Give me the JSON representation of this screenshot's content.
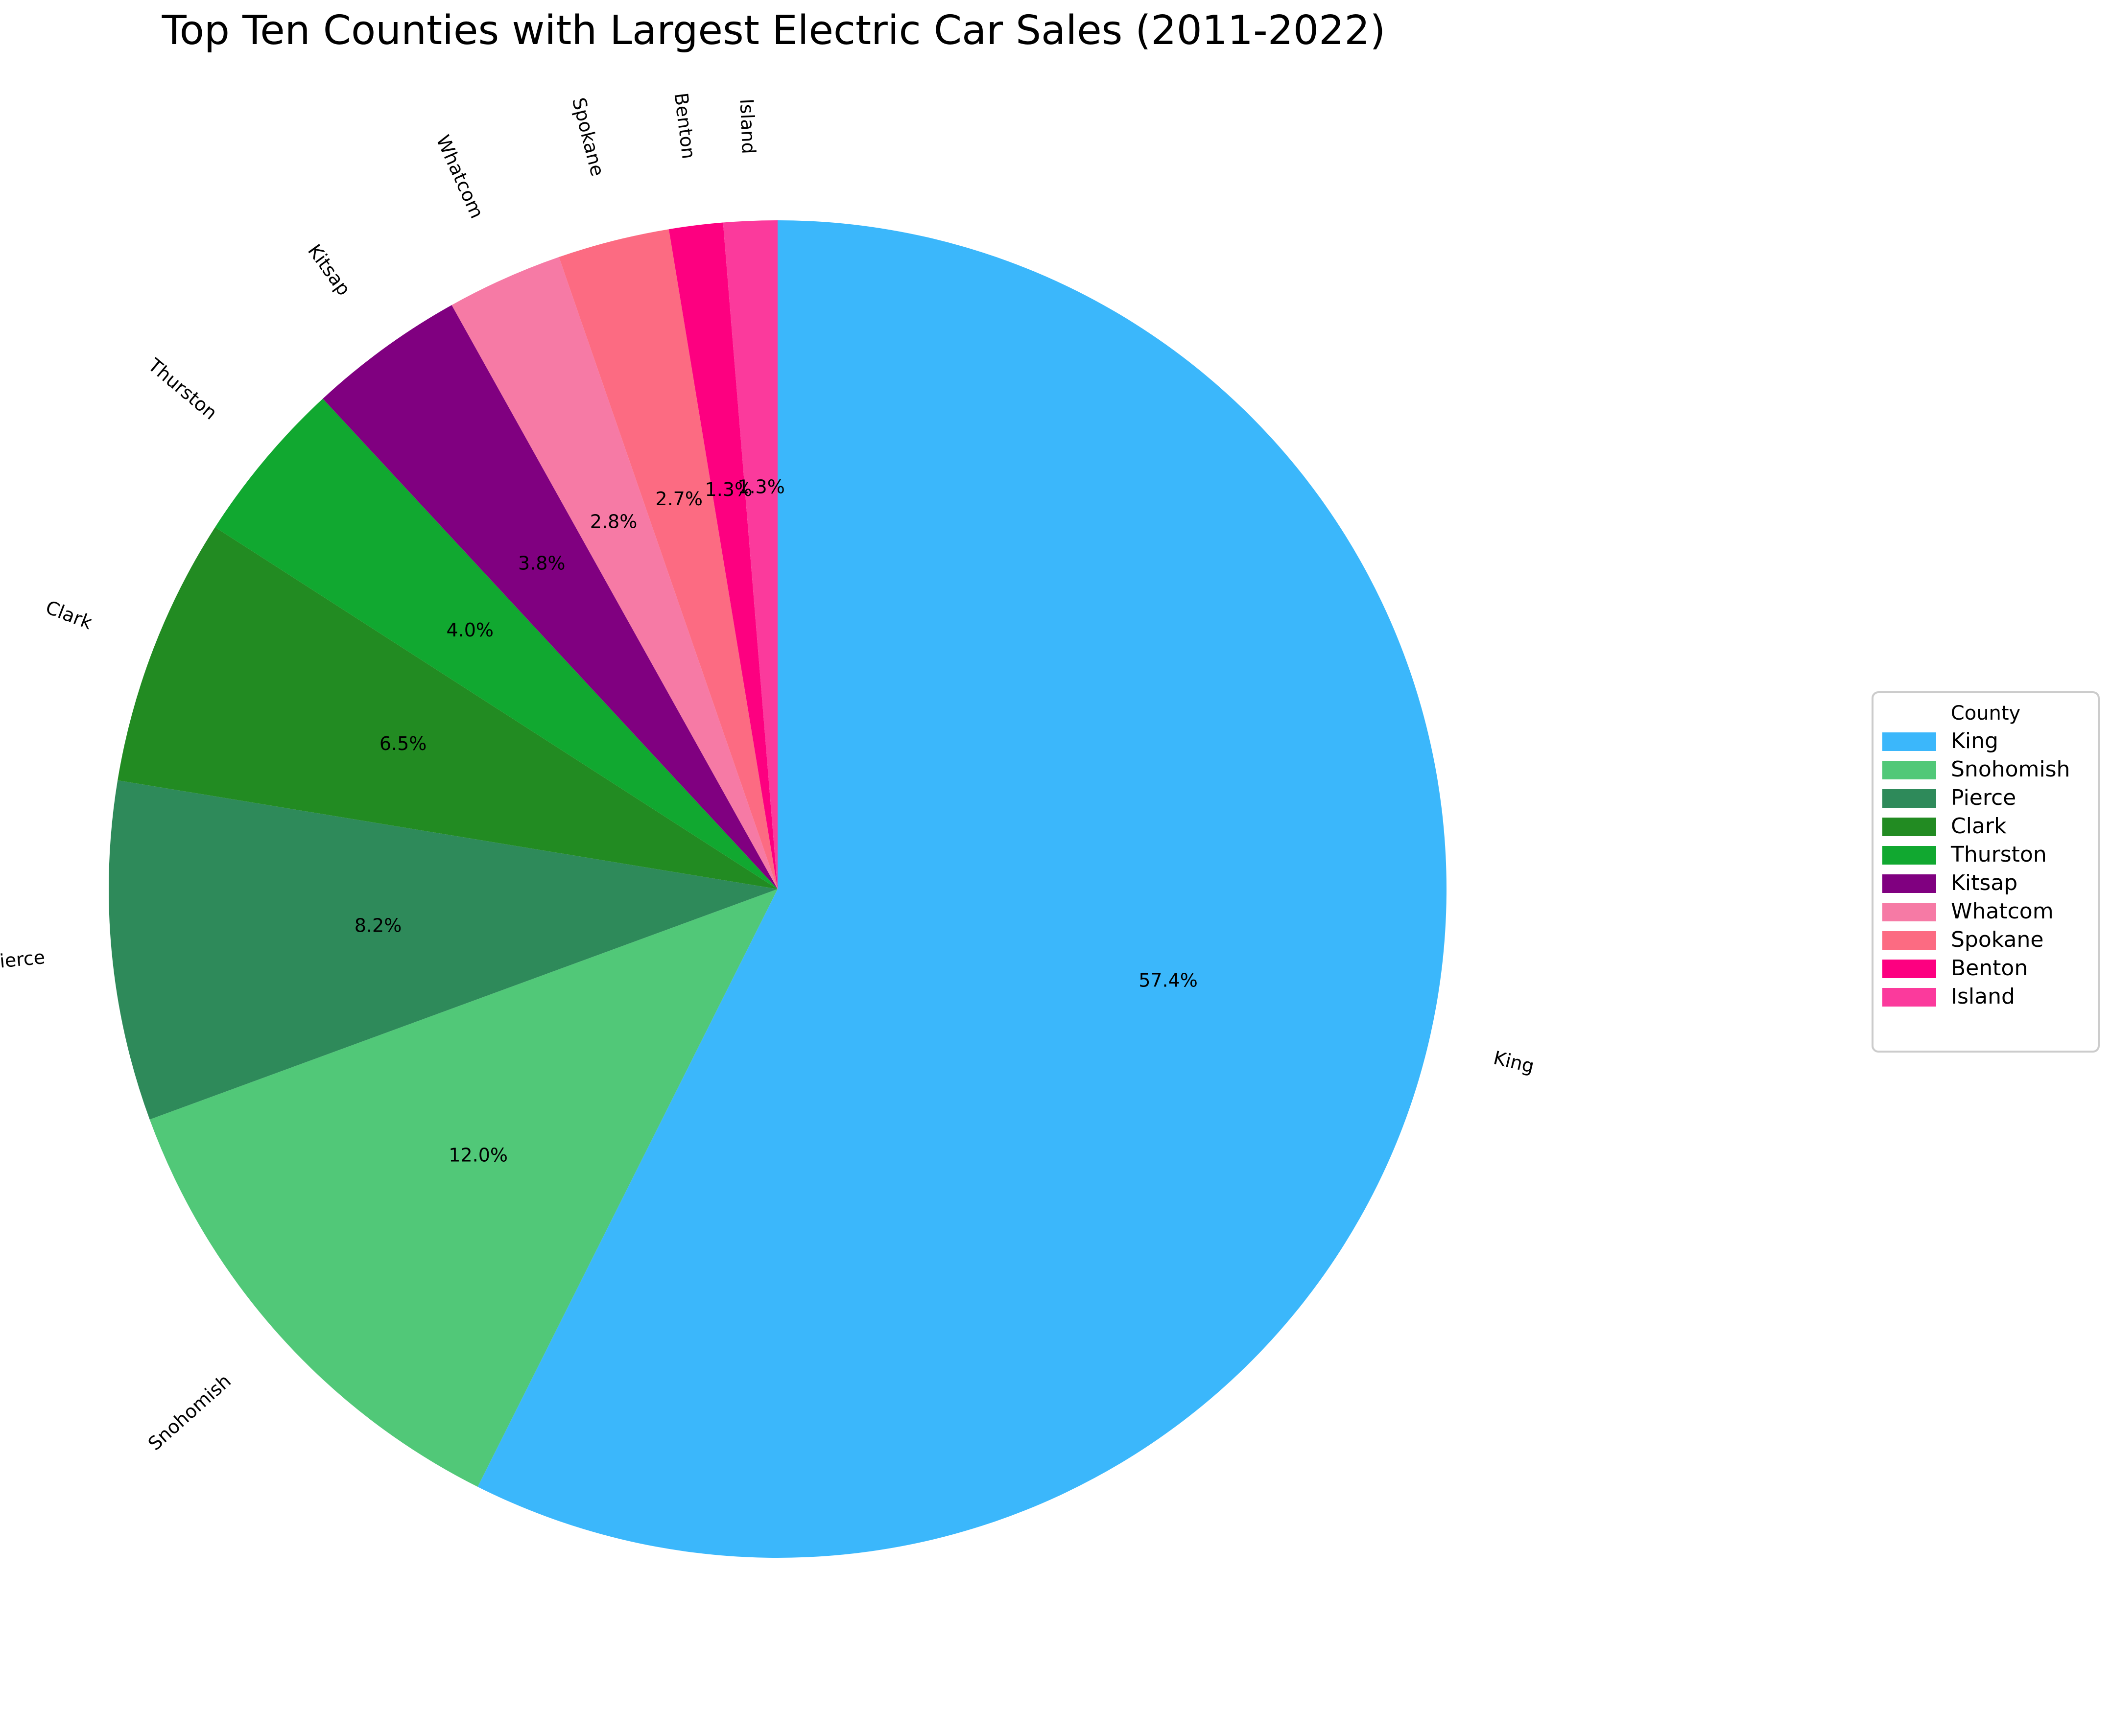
{
  "chart_data": {
    "type": "pie",
    "title": "Top Ten Counties with Largest Electric Car Sales (2011-2022)",
    "categories": [
      "King",
      "Snohomish",
      "Pierce",
      "Clark",
      "Thurston",
      "Kitsap",
      "Whatcom",
      "Spokane",
      "Benton",
      "Island"
    ],
    "values": [
      57.4,
      12.0,
      8.2,
      6.5,
      4.0,
      3.8,
      2.8,
      2.7,
      1.3,
      1.3
    ],
    "value_labels": [
      "57.4%",
      "12.0%",
      "8.2%",
      "6.5%",
      "4.0%",
      "3.8%",
      "2.8%",
      "2.7%",
      "1.3%",
      "1.3%"
    ],
    "colors": [
      "#3bb7fb",
      "#51c878",
      "#2e8a5a",
      "#228b22",
      "#11a830",
      "#800080",
      "#f67aa5",
      "#fc6b82",
      "#fd0080",
      "#fb3a9c"
    ],
    "start_angle": 90,
    "direction": "clockwise",
    "legend": {
      "title": "County",
      "placement": "right",
      "entries": [
        "King",
        "Snohomish",
        "Pierce",
        "Clark",
        "Thurston",
        "Kitsap",
        "Whatcom",
        "Spokane",
        "Benton",
        "Island"
      ]
    }
  }
}
